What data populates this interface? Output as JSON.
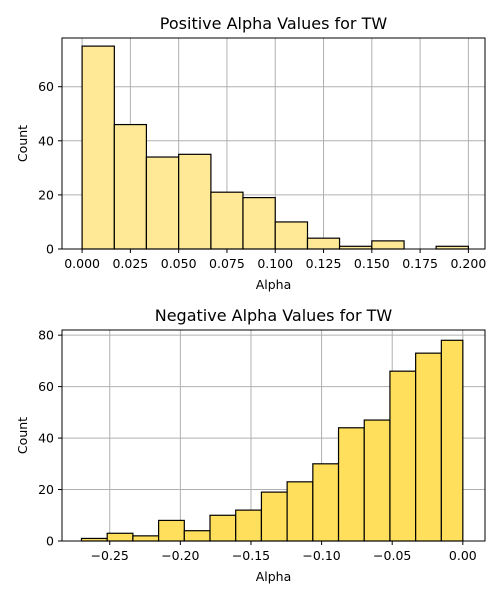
{
  "chart_data": [
    {
      "type": "bar",
      "title": "Positive Alpha Values for TW",
      "xlabel": "Alpha",
      "ylabel": "Count",
      "xlim": [
        -0.0104,
        0.2086
      ],
      "ylim": [
        0,
        78
      ],
      "xticks": [
        0.0,
        0.025,
        0.05,
        0.075,
        0.1,
        0.125,
        0.15,
        0.175,
        0.2
      ],
      "xtick_labels": [
        "0.000",
        "0.025",
        "0.050",
        "0.075",
        "0.100",
        "0.125",
        "0.150",
        "0.175",
        "0.200"
      ],
      "yticks": [
        0,
        20,
        40,
        60
      ],
      "ytick_labels": [
        "0",
        "20",
        "40",
        "60"
      ],
      "grid": true,
      "bar_color": "#ffe896",
      "bins": [
        {
          "x0": 0.0,
          "x1": 0.0167,
          "value": 75
        },
        {
          "x0": 0.0167,
          "x1": 0.0333,
          "value": 46
        },
        {
          "x0": 0.0333,
          "x1": 0.05,
          "value": 34
        },
        {
          "x0": 0.05,
          "x1": 0.0667,
          "value": 35
        },
        {
          "x0": 0.0667,
          "x1": 0.0833,
          "value": 21
        },
        {
          "x0": 0.0833,
          "x1": 0.1,
          "value": 19
        },
        {
          "x0": 0.1,
          "x1": 0.1167,
          "value": 10
        },
        {
          "x0": 0.1167,
          "x1": 0.1333,
          "value": 4
        },
        {
          "x0": 0.1333,
          "x1": 0.15,
          "value": 1
        },
        {
          "x0": 0.15,
          "x1": 0.1667,
          "value": 3
        },
        {
          "x0": 0.1667,
          "x1": 0.1833,
          "value": 0
        },
        {
          "x0": 0.1833,
          "x1": 0.2,
          "value": 1
        }
      ]
    },
    {
      "type": "bar",
      "title": "Negative Alpha Values for TW",
      "xlabel": "Alpha",
      "ylabel": "Count",
      "xlim": [
        -0.2838,
        0.0157
      ],
      "ylim": [
        0,
        82
      ],
      "xticks": [
        -0.25,
        -0.2,
        -0.15,
        -0.1,
        -0.05,
        0.0
      ],
      "xtick_labels": [
        "−0.25",
        "−0.20",
        "−0.15",
        "−0.10",
        "−0.05",
        "0.00"
      ],
      "yticks": [
        0,
        20,
        40,
        60,
        80
      ],
      "ytick_labels": [
        "0",
        "20",
        "40",
        "60",
        "80"
      ],
      "grid": true,
      "bar_color": "#ffdf5b",
      "bins": [
        {
          "x0": -0.27,
          "x1": -0.2518,
          "value": 1
        },
        {
          "x0": -0.2518,
          "x1": -0.2336,
          "value": 3
        },
        {
          "x0": -0.2336,
          "x1": -0.2154,
          "value": 2
        },
        {
          "x0": -0.2154,
          "x1": -0.1972,
          "value": 8
        },
        {
          "x0": -0.1972,
          "x1": -0.179,
          "value": 4
        },
        {
          "x0": -0.179,
          "x1": -0.1608,
          "value": 10
        },
        {
          "x0": -0.1608,
          "x1": -0.1426,
          "value": 12
        },
        {
          "x0": -0.1426,
          "x1": -0.1244,
          "value": 19
        },
        {
          "x0": -0.1244,
          "x1": -0.1062,
          "value": 23
        },
        {
          "x0": -0.1062,
          "x1": -0.088,
          "value": 30
        },
        {
          "x0": -0.088,
          "x1": -0.0698,
          "value": 44
        },
        {
          "x0": -0.0698,
          "x1": -0.0516,
          "value": 47
        },
        {
          "x0": -0.0516,
          "x1": -0.0334,
          "value": 66
        },
        {
          "x0": -0.0334,
          "x1": -0.0152,
          "value": 73
        },
        {
          "x0": -0.0152,
          "x1": 0.0,
          "value": 78
        }
      ]
    }
  ]
}
